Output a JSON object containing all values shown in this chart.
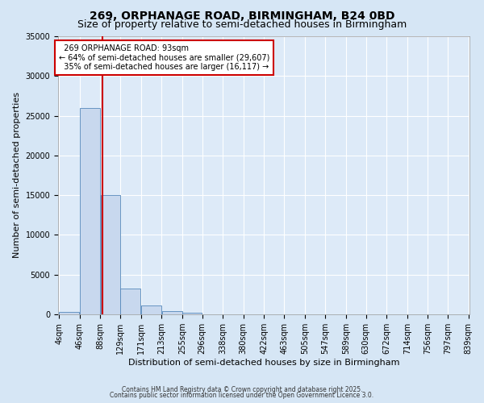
{
  "title": "269, ORPHANAGE ROAD, BIRMINGHAM, B24 0BD",
  "subtitle": "Size of property relative to semi-detached houses in Birmingham",
  "xlabel": "Distribution of semi-detached houses by size in Birmingham",
  "ylabel": "Number of semi-detached properties",
  "bin_edges": [
    4,
    46,
    88,
    129,
    171,
    213,
    255,
    296,
    338,
    380,
    422,
    463,
    505,
    547,
    589,
    630,
    672,
    714,
    756,
    797,
    839
  ],
  "bar_heights": [
    300,
    26000,
    15000,
    3200,
    1100,
    450,
    200,
    0,
    0,
    0,
    0,
    0,
    0,
    0,
    0,
    0,
    0,
    0,
    0,
    0
  ],
  "bar_color": "#c8d8ee",
  "bar_edge_color": "#5588bb",
  "property_size": 93,
  "property_label": "269 ORPHANAGE ROAD: 93sqm",
  "pct_smaller": 64,
  "n_smaller": 29607,
  "pct_larger": 35,
  "n_larger": 16117,
  "vline_color": "#cc0000",
  "annotation_border_color": "#cc0000",
  "ylim": [
    0,
    35000
  ],
  "yticks": [
    0,
    5000,
    10000,
    15000,
    20000,
    25000,
    30000,
    35000
  ],
  "footer_line1": "Contains HM Land Registry data © Crown copyright and database right 2025.",
  "footer_line2": "Contains public sector information licensed under the Open Government Licence 3.0.",
  "fig_bg_color": "#d6e6f5",
  "plot_bg_color": "#ddeaf8",
  "title_fontsize": 10,
  "subtitle_fontsize": 9,
  "tick_fontsize": 7,
  "ylabel_fontsize": 8,
  "xlabel_fontsize": 8
}
